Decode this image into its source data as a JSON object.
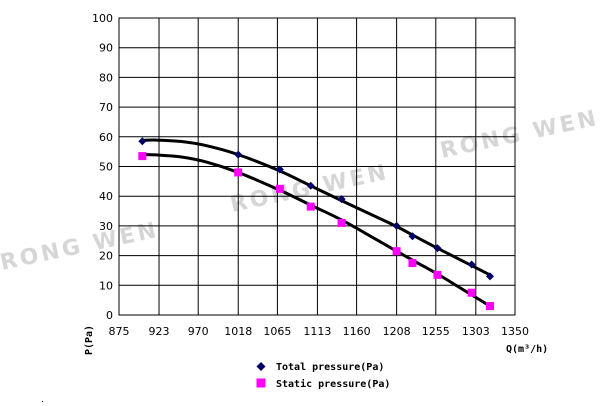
{
  "watermark": "RONG WEN",
  "chart_data": {
    "type": "scatter",
    "x_ticks": [
      875,
      923,
      970,
      1018,
      1065,
      1113,
      1160,
      1208,
      1255,
      1303,
      1350
    ],
    "y_ticks": [
      0,
      10,
      20,
      30,
      40,
      50,
      60,
      70,
      80,
      90,
      100
    ],
    "xlim": [
      875,
      1350
    ],
    "ylim": [
      0,
      100
    ],
    "grid": true,
    "xlabel": "Q(m³/h)",
    "ylabel": "P(Pa)",
    "legend_position": "bottom",
    "series": [
      {
        "name": "Total pressure(Pa)",
        "color": "#000066",
        "marker": "diamond",
        "x": [
          903,
          1018,
          1068,
          1105,
          1142,
          1208,
          1227,
          1257,
          1298,
          1320
        ],
        "y": [
          58.5,
          54,
          49,
          43.5,
          39,
          30,
          26.5,
          22.5,
          17,
          13
        ],
        "trend": [
          [
            903,
            58.8
          ],
          [
            920,
            58.9
          ],
          [
            950,
            58.4
          ],
          [
            980,
            57.0
          ],
          [
            1018,
            54.0
          ],
          [
            1068,
            48.5
          ],
          [
            1105,
            43.5
          ],
          [
            1142,
            38.5
          ],
          [
            1180,
            33.5
          ],
          [
            1208,
            29.8
          ],
          [
            1230,
            26.5
          ],
          [
            1257,
            22.5
          ],
          [
            1285,
            18.5
          ],
          [
            1320,
            13.5
          ]
        ]
      },
      {
        "name": "Static pressure(Pa)",
        "color": "#ff00ff",
        "marker": "square",
        "x": [
          903,
          1018,
          1068,
          1105,
          1142,
          1208,
          1227,
          1257,
          1298,
          1320
        ],
        "y": [
          53.5,
          48,
          42.5,
          36.5,
          31,
          21.5,
          17.5,
          13.5,
          7.5,
          3
        ],
        "trend": [
          [
            903,
            54.0
          ],
          [
            920,
            53.9
          ],
          [
            950,
            53.2
          ],
          [
            980,
            51.5
          ],
          [
            1018,
            48.0
          ],
          [
            1068,
            42.0
          ],
          [
            1105,
            37.0
          ],
          [
            1142,
            32.0
          ],
          [
            1180,
            26.0
          ],
          [
            1208,
            21.5
          ],
          [
            1230,
            18.0
          ],
          [
            1257,
            13.8
          ],
          [
            1285,
            9.0
          ],
          [
            1320,
            3.0
          ]
        ]
      }
    ]
  }
}
